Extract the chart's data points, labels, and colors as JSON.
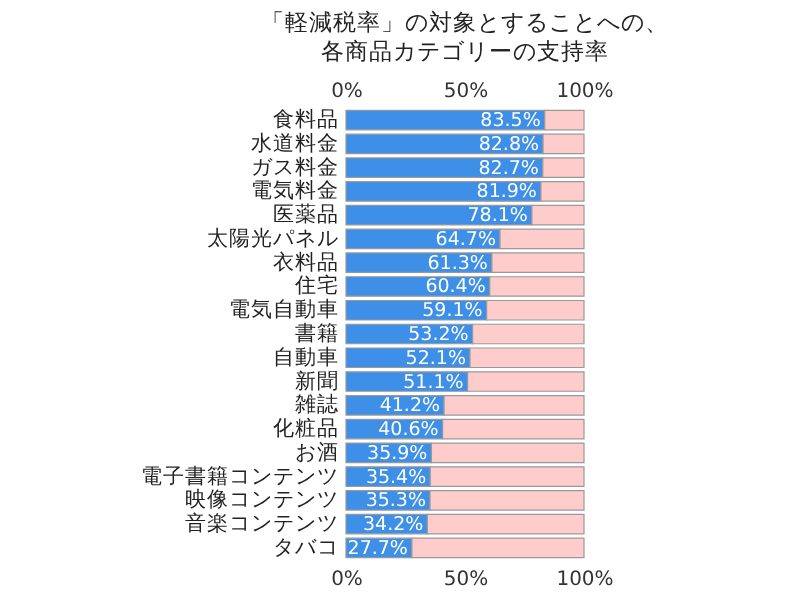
{
  "chart_data": {
    "type": "bar",
    "orientation": "horizontal",
    "stacked": true,
    "title": "「軽減税率」の対象とすることへの、",
    "subtitle": "各商品カテゴリーの支持率",
    "categories": [
      "食料品",
      "水道料金",
      "ガス料金",
      "電気料金",
      "医薬品",
      "太陽光パネル",
      "衣料品",
      "住宅",
      "電気自動車",
      "書籍",
      "自動車",
      "新聞",
      "雑誌",
      "化粧品",
      "お酒",
      "電子書籍コンテンツ",
      "映像コンテンツ",
      "音楽コンテンツ",
      "タバコ"
    ],
    "series": [
      {
        "color": "#3d8fe8",
        "values": [
          83.5,
          82.8,
          82.7,
          81.9,
          78.1,
          64.7,
          61.3,
          60.4,
          59.1,
          53.2,
          52.1,
          51.1,
          41.2,
          40.6,
          35.9,
          35.4,
          35.3,
          34.2,
          27.7
        ],
        "value_labels": [
          "83.5%",
          "82.8%",
          "82.7%",
          "81.9%",
          "78.1%",
          "64.7%",
          "61.3%",
          "60.4%",
          "59.1%",
          "53.2%",
          "52.1%",
          "51.1%",
          "41.2%",
          "40.6%",
          "35.9%",
          "35.4%",
          "35.3%",
          "34.2%",
          "27.7%"
        ]
      },
      {
        "color": "#ffcccc",
        "values": [
          16.5,
          17.2,
          17.3,
          18.1,
          21.9,
          35.3,
          38.7,
          39.6,
          40.9,
          46.8,
          47.9,
          48.9,
          58.8,
          59.4,
          64.1,
          64.6,
          64.7,
          65.8,
          72.3
        ]
      }
    ],
    "xlim": [
      0,
      100
    ],
    "xticks": [
      {
        "value": 0,
        "label": "0%"
      },
      {
        "value": 50,
        "label": "50%"
      },
      {
        "value": 100,
        "label": "100%"
      }
    ],
    "x2lim": [
      0,
      100
    ],
    "x2ticks": [
      {
        "value": 0,
        "label": "0%"
      },
      {
        "value": 50,
        "label": "50%"
      },
      {
        "value": 100,
        "label": "100%"
      }
    ],
    "grid": false,
    "legend": false
  }
}
